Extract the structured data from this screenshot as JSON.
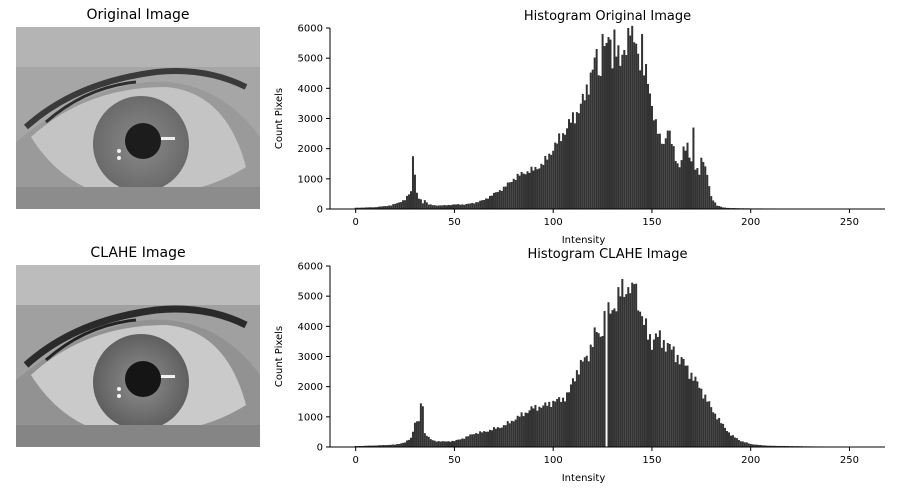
{
  "images": {
    "original_title": "Original Image",
    "clahe_title": "CLAHE Image"
  },
  "chart_data": [
    {
      "type": "bar",
      "title": "Histogram Original Image",
      "xlabel": "Intensity",
      "ylabel": "Count Pixels",
      "xlim": [
        -13,
        268
      ],
      "ylim": [
        0,
        6000
      ],
      "xticks": [
        0,
        50,
        100,
        150,
        200,
        250
      ],
      "yticks": [
        0,
        1000,
        2000,
        3000,
        4000,
        5000,
        6000
      ],
      "grid": false,
      "bar_color": "#333333",
      "profile_x": [
        0,
        10,
        18,
        25,
        28,
        29,
        30,
        31,
        32,
        33,
        34,
        35,
        37,
        40,
        45,
        50,
        55,
        60,
        65,
        70,
        75,
        80,
        85,
        90,
        95,
        100,
        105,
        110,
        113,
        116,
        118,
        120,
        122,
        124,
        126,
        128,
        130,
        132,
        134,
        136,
        138,
        140,
        142,
        144,
        146,
        148,
        150,
        152,
        154,
        156,
        158,
        160,
        162,
        164,
        166,
        168,
        170,
        172,
        174,
        176,
        178,
        180,
        183,
        186,
        190,
        200,
        220,
        255
      ],
      "profile_y": [
        40,
        60,
        120,
        300,
        600,
        1700,
        1200,
        500,
        350,
        300,
        200,
        300,
        150,
        120,
        120,
        150,
        150,
        200,
        300,
        500,
        700,
        1000,
        1200,
        1300,
        1500,
        2000,
        2500,
        3000,
        3300,
        3700,
        4200,
        4700,
        5000,
        4300,
        5200,
        5800,
        5000,
        5500,
        4700,
        5200,
        5900,
        5600,
        5400,
        5000,
        4600,
        4200,
        3500,
        2800,
        2300,
        2200,
        2600,
        2200,
        1700,
        1400,
        1900,
        2100,
        1600,
        1300,
        1200,
        1700,
        1100,
        400,
        120,
        50,
        30,
        20,
        15,
        10
      ],
      "spikes": [
        [
          125,
          5800
        ],
        [
          128,
          5700
        ],
        [
          131,
          5950
        ],
        [
          138,
          6000
        ],
        [
          139,
          5750
        ],
        [
          145,
          5800
        ],
        [
          158,
          2600
        ],
        [
          171,
          2700
        ],
        [
          175,
          1700
        ],
        [
          29,
          1750
        ]
      ]
    },
    {
      "type": "bar",
      "title": "Histogram CLAHE Image",
      "xlabel": "Intensity",
      "ylabel": "Count Pixels",
      "xlim": [
        -13,
        268
      ],
      "ylim": [
        0,
        6000
      ],
      "xticks": [
        0,
        50,
        100,
        150,
        200,
        250
      ],
      "yticks": [
        0,
        1000,
        2000,
        3000,
        4000,
        5000,
        6000
      ],
      "grid": false,
      "bar_color": "#333333",
      "profile_x": [
        0,
        10,
        20,
        25,
        28,
        30,
        32,
        33,
        34,
        35,
        36,
        38,
        40,
        45,
        50,
        55,
        60,
        65,
        70,
        75,
        80,
        85,
        90,
        95,
        100,
        105,
        108,
        110,
        112,
        115,
        118,
        120,
        122,
        124,
        126,
        127,
        128,
        130,
        132,
        134,
        136,
        138,
        140,
        142,
        144,
        146,
        148,
        150,
        152,
        155,
        158,
        160,
        163,
        166,
        170,
        175,
        180,
        185,
        190,
        195,
        200,
        205,
        210,
        220,
        230,
        240,
        255
      ],
      "profile_y": [
        30,
        50,
        80,
        150,
        300,
        800,
        850,
        1350,
        650,
        450,
        400,
        250,
        200,
        180,
        200,
        300,
        450,
        500,
        600,
        700,
        900,
        1100,
        1300,
        1350,
        1500,
        1600,
        1800,
        2200,
        2500,
        2800,
        3100,
        3500,
        3800,
        3700,
        4300,
        0,
        4400,
        4600,
        4800,
        5100,
        5200,
        5200,
        5400,
        5100,
        4600,
        4100,
        3700,
        3500,
        3700,
        3500,
        3400,
        3200,
        3000,
        2800,
        2400,
        1900,
        1300,
        800,
        400,
        200,
        100,
        60,
        40,
        30,
        20,
        15,
        10
      ],
      "spikes": [
        [
          140,
          5450
        ],
        [
          141,
          5400
        ],
        [
          138,
          5300
        ],
        [
          34,
          1350
        ]
      ]
    }
  ]
}
